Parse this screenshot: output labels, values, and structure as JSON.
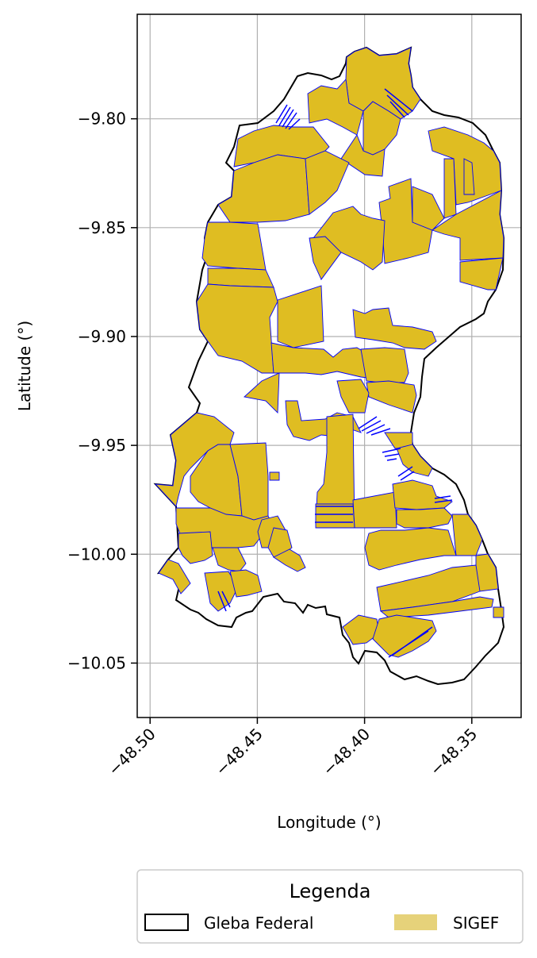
{
  "chart_data": {
    "type": "map",
    "xlabel": "Longitude (°)",
    "ylabel": "Latitude (°)",
    "xlim": [
      -48.506,
      -48.327
    ],
    "ylim": [
      -10.075,
      -9.752
    ],
    "x_ticks": [
      {
        "value": -48.5,
        "label": "−48.50"
      },
      {
        "value": -48.45,
        "label": "−48.45"
      },
      {
        "value": -48.4,
        "label": "−48.40"
      },
      {
        "value": -48.35,
        "label": "−48.35"
      }
    ],
    "y_ticks": [
      {
        "value": -9.8,
        "label": "−9.80"
      },
      {
        "value": -9.85,
        "label": "−9.85"
      },
      {
        "value": -9.9,
        "label": "−9.90"
      },
      {
        "value": -9.95,
        "label": "−9.95"
      },
      {
        "value": -10.0,
        "label": "−10.00"
      },
      {
        "value": -10.05,
        "label": "−10.05"
      }
    ],
    "grid": true,
    "legend": {
      "title": "Legenda",
      "placement": "bottom",
      "entries": [
        {
          "label": "Gleba Federal",
          "style": "outline",
          "color": "#000000"
        },
        {
          "label": "SIGEF",
          "style": "fill",
          "color": "#e6d27a"
        }
      ]
    },
    "colors": {
      "gleba_outline": "#000000",
      "sigef_fill": "#dfbd22",
      "sigef_edge": "#0000ff",
      "grid": "#b0b0b0"
    }
  }
}
